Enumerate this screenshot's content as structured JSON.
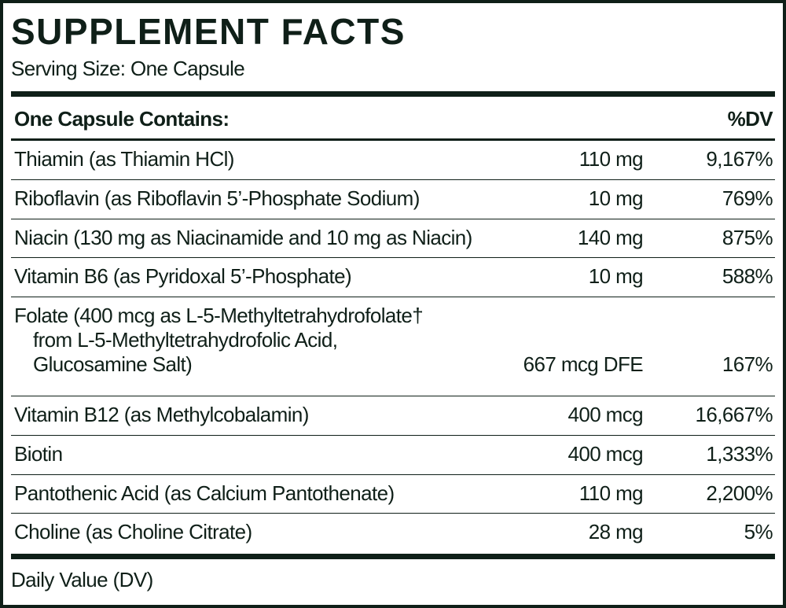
{
  "title": "SUPPLEMENT FACTS",
  "serving_size": "Serving Size: One Capsule",
  "header": {
    "contains": "One Capsule Contains:",
    "dv": "%DV"
  },
  "rows": [
    {
      "name": [
        "Thiamin (as Thiamin HCl)"
      ],
      "amount": "110 mg",
      "dv": "9,167%"
    },
    {
      "name": [
        "Riboflavin (as Riboflavin 5’-Phosphate Sodium)"
      ],
      "amount": "10 mg",
      "dv": "769%"
    },
    {
      "name": [
        "Niacin (130 mg as Niacinamide and 10 mg as Niacin)"
      ],
      "amount": "140 mg",
      "dv": "875%"
    },
    {
      "name": [
        "Vitamin B6 (as Pyridoxal 5’-Phosphate)"
      ],
      "amount": "10 mg",
      "dv": "588%"
    },
    {
      "name": [
        "Folate (400 mcg as L-5-Methyltetrahydrofolate†",
        "from L-5-Methyltetrahydrofolic Acid,",
        "Glucosamine Salt)"
      ],
      "amount": "667 mcg DFE",
      "dv": "167%"
    },
    {
      "name": [
        "Vitamin B12 (as Methylcobalamin)"
      ],
      "amount": "400 mcg",
      "dv": "16,667%"
    },
    {
      "name": [
        "Biotin"
      ],
      "amount": "400 mcg",
      "dv": "1,333%"
    },
    {
      "name": [
        "Pantothenic Acid (as Calcium Pantothenate)"
      ],
      "amount": "110 mg",
      "dv": "2,200%"
    },
    {
      "name": [
        "Choline (as Choline Citrate)"
      ],
      "amount": "28 mg",
      "dv": "5%"
    }
  ],
  "footer": "Daily Value (DV)"
}
